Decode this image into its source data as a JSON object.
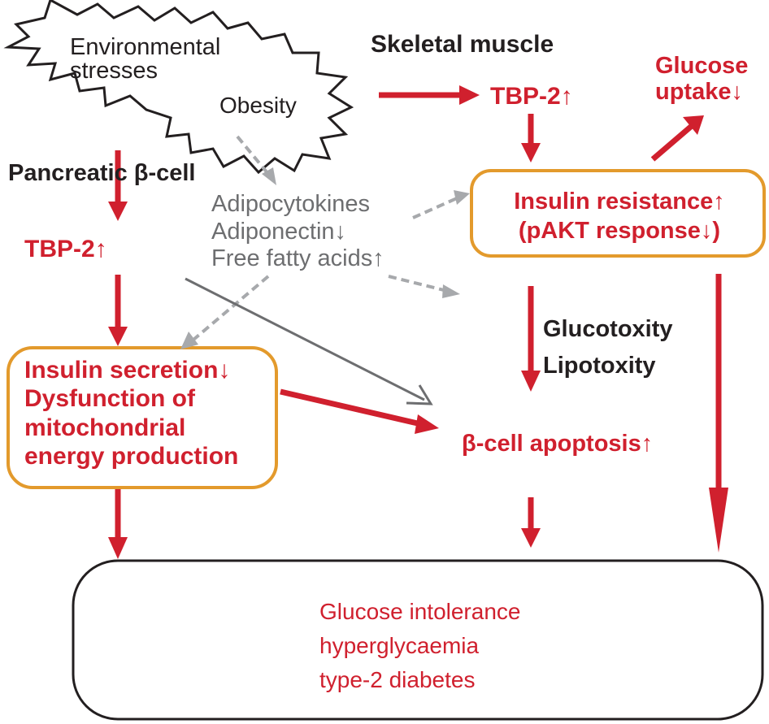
{
  "stress_cloud": {
    "line1": "Environmental",
    "line2": "stresses",
    "line3": "Obesity"
  },
  "muscle": {
    "heading": "Skeletal muscle",
    "tbp2": "TBP-2↑",
    "glucose_uptake_line1": "Glucose",
    "glucose_uptake_line2": "uptake↓",
    "insulin_resistance_line1": "Insulin resistance↑",
    "insulin_resistance_line2": "(pAKT response↓)"
  },
  "adipose": {
    "line1": "Adipocytokines",
    "line2": "Adiponectin↓",
    "line3": "Free fatty acids↑"
  },
  "pancreas": {
    "heading": "Pancreatic β-cell",
    "tbp2": "TBP-2↑",
    "secretion_line1": "Insulin secretion↓",
    "secretion_line2": "Dysfunction of",
    "secretion_line3": "mitochondrial",
    "secretion_line4": "energy production"
  },
  "toxicity": {
    "line1": "Glucotoxity",
    "line2": "Lipotoxity"
  },
  "apoptosis": "β-cell apoptosis↑",
  "outcome": {
    "line1": "Glucose intolerance",
    "line2": "hyperglycaemia",
    "line3": "type-2 diabetes"
  },
  "colors": {
    "red": "#d0202e",
    "orange_box": "#e39a2c",
    "gray_text": "#6d6e70",
    "gray_dashed": "#a7a9ac",
    "gray_arrow": "#6d6e70",
    "black": "#231f20"
  }
}
